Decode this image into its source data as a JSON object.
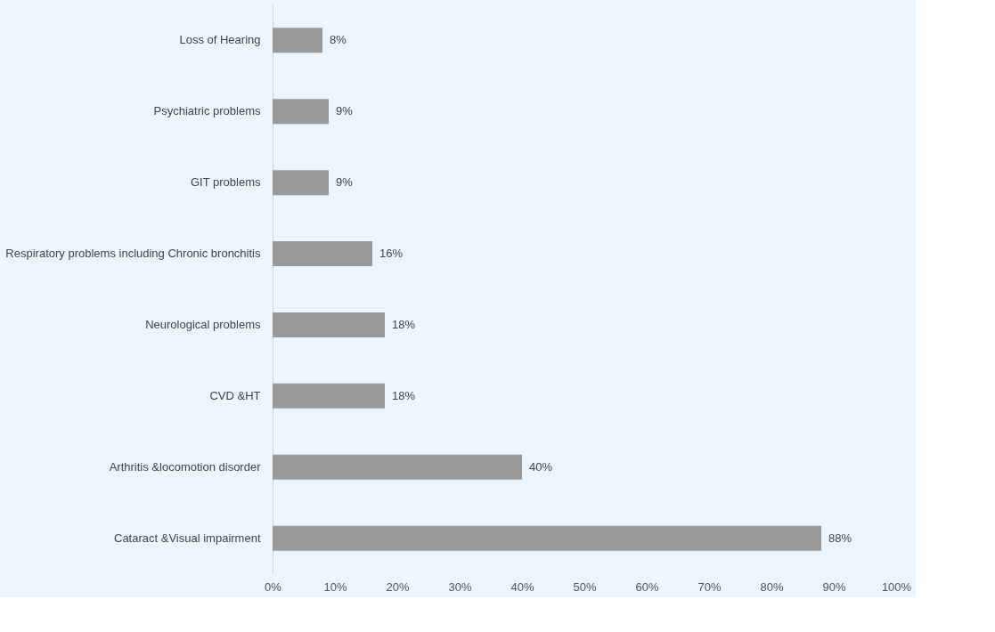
{
  "chart_data": {
    "type": "bar",
    "orientation": "horizontal",
    "categories": [
      "Loss of Hearing",
      "Psychiatric problems",
      "GIT problems",
      "Respiratory problems including Chronic bronchitis",
      "Neurological problems",
      "CVD &HT",
      "Arthritis &locomotion disorder",
      "Cataract &Visual impairment"
    ],
    "values": [
      8,
      9,
      9,
      16,
      18,
      18,
      40,
      88
    ],
    "value_labels": [
      "8%",
      "9%",
      "9%",
      "16%",
      "18%",
      "18%",
      "40%",
      "88%"
    ],
    "color": "#999999",
    "xlim": [
      0,
      100
    ],
    "xticks": [
      {
        "value": 0,
        "label": "0%"
      },
      {
        "value": 10,
        "label": "10%"
      },
      {
        "value": 20,
        "label": "20%"
      },
      {
        "value": 30,
        "label": "30%"
      },
      {
        "value": 40,
        "label": "40%"
      },
      {
        "value": 50,
        "label": "50%"
      },
      {
        "value": 60,
        "label": "60%"
      },
      {
        "value": 70,
        "label": "70%"
      },
      {
        "value": 80,
        "label": "80%"
      },
      {
        "value": 90,
        "label": "90%"
      },
      {
        "value": 100,
        "label": "100%"
      }
    ],
    "grid": false
  }
}
